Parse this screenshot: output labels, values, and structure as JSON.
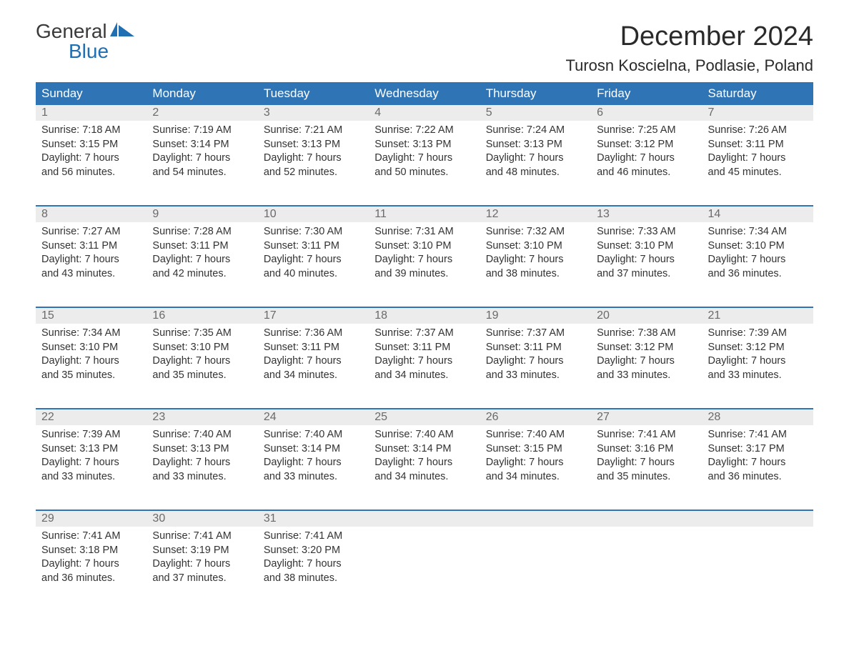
{
  "logo": {
    "text_general": "General",
    "text_blue": "Blue",
    "icon_color": "#1f6fb2"
  },
  "header": {
    "month_title": "December 2024",
    "location": "Turosn Koscielna, Podlasie, Poland"
  },
  "colors": {
    "header_bg": "#2f74b5",
    "header_text": "#ffffff",
    "daynum_bg": "#ececec",
    "daynum_text": "#6a6a6a",
    "body_text": "#333333",
    "week_border": "#2f74b5",
    "page_bg": "#ffffff"
  },
  "weekdays": [
    "Sunday",
    "Monday",
    "Tuesday",
    "Wednesday",
    "Thursday",
    "Friday",
    "Saturday"
  ],
  "weeks": [
    [
      {
        "num": "1",
        "sunrise": "Sunrise: 7:18 AM",
        "sunset": "Sunset: 3:15 PM",
        "d1": "Daylight: 7 hours",
        "d2": "and 56 minutes."
      },
      {
        "num": "2",
        "sunrise": "Sunrise: 7:19 AM",
        "sunset": "Sunset: 3:14 PM",
        "d1": "Daylight: 7 hours",
        "d2": "and 54 minutes."
      },
      {
        "num": "3",
        "sunrise": "Sunrise: 7:21 AM",
        "sunset": "Sunset: 3:13 PM",
        "d1": "Daylight: 7 hours",
        "d2": "and 52 minutes."
      },
      {
        "num": "4",
        "sunrise": "Sunrise: 7:22 AM",
        "sunset": "Sunset: 3:13 PM",
        "d1": "Daylight: 7 hours",
        "d2": "and 50 minutes."
      },
      {
        "num": "5",
        "sunrise": "Sunrise: 7:24 AM",
        "sunset": "Sunset: 3:13 PM",
        "d1": "Daylight: 7 hours",
        "d2": "and 48 minutes."
      },
      {
        "num": "6",
        "sunrise": "Sunrise: 7:25 AM",
        "sunset": "Sunset: 3:12 PM",
        "d1": "Daylight: 7 hours",
        "d2": "and 46 minutes."
      },
      {
        "num": "7",
        "sunrise": "Sunrise: 7:26 AM",
        "sunset": "Sunset: 3:11 PM",
        "d1": "Daylight: 7 hours",
        "d2": "and 45 minutes."
      }
    ],
    [
      {
        "num": "8",
        "sunrise": "Sunrise: 7:27 AM",
        "sunset": "Sunset: 3:11 PM",
        "d1": "Daylight: 7 hours",
        "d2": "and 43 minutes."
      },
      {
        "num": "9",
        "sunrise": "Sunrise: 7:28 AM",
        "sunset": "Sunset: 3:11 PM",
        "d1": "Daylight: 7 hours",
        "d2": "and 42 minutes."
      },
      {
        "num": "10",
        "sunrise": "Sunrise: 7:30 AM",
        "sunset": "Sunset: 3:11 PM",
        "d1": "Daylight: 7 hours",
        "d2": "and 40 minutes."
      },
      {
        "num": "11",
        "sunrise": "Sunrise: 7:31 AM",
        "sunset": "Sunset: 3:10 PM",
        "d1": "Daylight: 7 hours",
        "d2": "and 39 minutes."
      },
      {
        "num": "12",
        "sunrise": "Sunrise: 7:32 AM",
        "sunset": "Sunset: 3:10 PM",
        "d1": "Daylight: 7 hours",
        "d2": "and 38 minutes."
      },
      {
        "num": "13",
        "sunrise": "Sunrise: 7:33 AM",
        "sunset": "Sunset: 3:10 PM",
        "d1": "Daylight: 7 hours",
        "d2": "and 37 minutes."
      },
      {
        "num": "14",
        "sunrise": "Sunrise: 7:34 AM",
        "sunset": "Sunset: 3:10 PM",
        "d1": "Daylight: 7 hours",
        "d2": "and 36 minutes."
      }
    ],
    [
      {
        "num": "15",
        "sunrise": "Sunrise: 7:34 AM",
        "sunset": "Sunset: 3:10 PM",
        "d1": "Daylight: 7 hours",
        "d2": "and 35 minutes."
      },
      {
        "num": "16",
        "sunrise": "Sunrise: 7:35 AM",
        "sunset": "Sunset: 3:10 PM",
        "d1": "Daylight: 7 hours",
        "d2": "and 35 minutes."
      },
      {
        "num": "17",
        "sunrise": "Sunrise: 7:36 AM",
        "sunset": "Sunset: 3:11 PM",
        "d1": "Daylight: 7 hours",
        "d2": "and 34 minutes."
      },
      {
        "num": "18",
        "sunrise": "Sunrise: 7:37 AM",
        "sunset": "Sunset: 3:11 PM",
        "d1": "Daylight: 7 hours",
        "d2": "and 34 minutes."
      },
      {
        "num": "19",
        "sunrise": "Sunrise: 7:37 AM",
        "sunset": "Sunset: 3:11 PM",
        "d1": "Daylight: 7 hours",
        "d2": "and 33 minutes."
      },
      {
        "num": "20",
        "sunrise": "Sunrise: 7:38 AM",
        "sunset": "Sunset: 3:12 PM",
        "d1": "Daylight: 7 hours",
        "d2": "and 33 minutes."
      },
      {
        "num": "21",
        "sunrise": "Sunrise: 7:39 AM",
        "sunset": "Sunset: 3:12 PM",
        "d1": "Daylight: 7 hours",
        "d2": "and 33 minutes."
      }
    ],
    [
      {
        "num": "22",
        "sunrise": "Sunrise: 7:39 AM",
        "sunset": "Sunset: 3:13 PM",
        "d1": "Daylight: 7 hours",
        "d2": "and 33 minutes."
      },
      {
        "num": "23",
        "sunrise": "Sunrise: 7:40 AM",
        "sunset": "Sunset: 3:13 PM",
        "d1": "Daylight: 7 hours",
        "d2": "and 33 minutes."
      },
      {
        "num": "24",
        "sunrise": "Sunrise: 7:40 AM",
        "sunset": "Sunset: 3:14 PM",
        "d1": "Daylight: 7 hours",
        "d2": "and 33 minutes."
      },
      {
        "num": "25",
        "sunrise": "Sunrise: 7:40 AM",
        "sunset": "Sunset: 3:14 PM",
        "d1": "Daylight: 7 hours",
        "d2": "and 34 minutes."
      },
      {
        "num": "26",
        "sunrise": "Sunrise: 7:40 AM",
        "sunset": "Sunset: 3:15 PM",
        "d1": "Daylight: 7 hours",
        "d2": "and 34 minutes."
      },
      {
        "num": "27",
        "sunrise": "Sunrise: 7:41 AM",
        "sunset": "Sunset: 3:16 PM",
        "d1": "Daylight: 7 hours",
        "d2": "and 35 minutes."
      },
      {
        "num": "28",
        "sunrise": "Sunrise: 7:41 AM",
        "sunset": "Sunset: 3:17 PM",
        "d1": "Daylight: 7 hours",
        "d2": "and 36 minutes."
      }
    ],
    [
      {
        "num": "29",
        "sunrise": "Sunrise: 7:41 AM",
        "sunset": "Sunset: 3:18 PM",
        "d1": "Daylight: 7 hours",
        "d2": "and 36 minutes."
      },
      {
        "num": "30",
        "sunrise": "Sunrise: 7:41 AM",
        "sunset": "Sunset: 3:19 PM",
        "d1": "Daylight: 7 hours",
        "d2": "and 37 minutes."
      },
      {
        "num": "31",
        "sunrise": "Sunrise: 7:41 AM",
        "sunset": "Sunset: 3:20 PM",
        "d1": "Daylight: 7 hours",
        "d2": "and 38 minutes."
      },
      null,
      null,
      null,
      null
    ]
  ]
}
